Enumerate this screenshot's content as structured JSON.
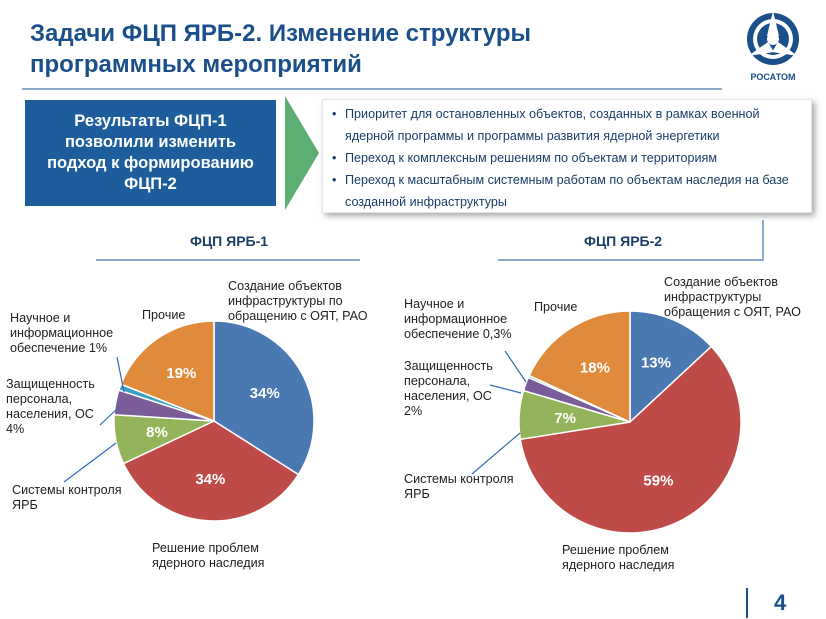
{
  "slide": {
    "title_line1": "Задачи ФЦП ЯРБ-2. Изменение структуры",
    "title_line2": "программных мероприятий",
    "logo_text": "РОСАТОМ",
    "page_number": "4",
    "accent_color": "#1e5d9b"
  },
  "intro": {
    "box_text": "Результаты ФЦП-1 позволили изменить подход к формированию ФЦП-2",
    "bullets": [
      "Приоритет для остановленных объектов, созданных в рамках военной ядерной программы и программы развития ядерной энергетики",
      "Переход к комплексным решениям по объектам и территориям",
      "Переход к масштабным системным работам по объектам наследия на базе созданной инфраструктуры"
    ]
  },
  "chart_data": [
    {
      "type": "pie",
      "title": "ФЦП ЯРБ-1",
      "slices": [
        {
          "label": "Создание объектов инфраструктуры по обращению с ОЯТ, РАО",
          "value": 34,
          "value_label": "34%",
          "color": "#4a78b0"
        },
        {
          "label": "Решение проблем ядерного наследия",
          "value": 34,
          "value_label": "34%",
          "color": "#be4b48"
        },
        {
          "label": "Системы контроля ЯРБ",
          "value": 8,
          "value_label": "8%",
          "color": "#93b45a"
        },
        {
          "label": "Защищенность персонала, населения, ОС 4%",
          "value": 4,
          "value_label": "",
          "color": "#7a5c98"
        },
        {
          "label": "Научное и информационное обеспечение 1%",
          "value": 1,
          "value_label": "",
          "color": "#3f9fbf"
        },
        {
          "label": "Прочие",
          "value": 19,
          "value_label": "19%",
          "color": "#e08a3c"
        }
      ]
    },
    {
      "type": "pie",
      "title": "ФЦП ЯРБ-2",
      "slices": [
        {
          "label": "Создание объектов инфраструктуры обращения с ОЯТ, РАО",
          "value": 13,
          "value_label": "13%",
          "color": "#4a78b0"
        },
        {
          "label": "Решение проблем ядерного наследия",
          "value": 59,
          "value_label": "59%",
          "color": "#be4b48"
        },
        {
          "label": "Системы контроля ЯРБ",
          "value": 7,
          "value_label": "7%",
          "color": "#93b45a"
        },
        {
          "label": "Защищенность персонала, населения, ОС 2%",
          "value": 2,
          "value_label": "",
          "color": "#7a5c98"
        },
        {
          "label": "Научное и информационное обеспечение 0,3%",
          "value": 0.3,
          "value_label": "",
          "color": "#3f9fbf"
        },
        {
          "label": "Прочие",
          "value": 18,
          "value_label": "18%",
          "color": "#e08a3c"
        }
      ]
    }
  ]
}
